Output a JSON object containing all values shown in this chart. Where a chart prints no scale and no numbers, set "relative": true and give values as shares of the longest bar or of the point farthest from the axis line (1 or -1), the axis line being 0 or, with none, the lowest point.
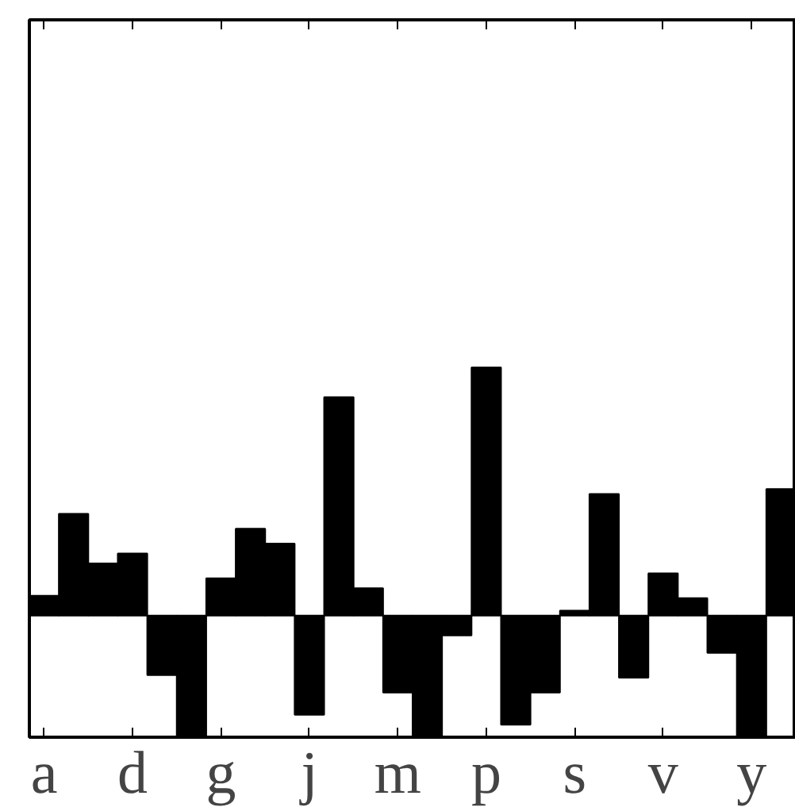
{
  "chart_data": {
    "type": "bar",
    "relative": true,
    "color": "#000000",
    "categories": [
      "a",
      null,
      null,
      "d",
      null,
      null,
      "g",
      null,
      null,
      "j",
      null,
      null,
      "m",
      null,
      null,
      "p",
      null,
      null,
      "s",
      null,
      null,
      "v",
      null,
      null,
      "y",
      null
    ],
    "values": [
      0.08,
      0.41,
      0.21,
      0.25,
      -0.24,
      -0.49,
      0.15,
      0.35,
      0.29,
      -0.4,
      0.88,
      0.11,
      -0.31,
      -0.49,
      -0.08,
      1,
      -0.44,
      -0.31,
      0.02,
      0.49,
      -0.25,
      0.17,
      0.07,
      -0.15,
      -0.49,
      0.51
    ]
  }
}
